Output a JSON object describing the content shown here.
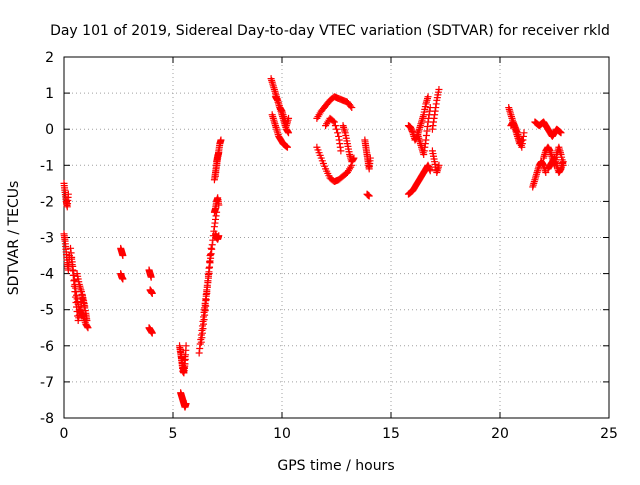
{
  "chart_data": {
    "type": "scatter",
    "title": "Day 101 of 2019, Sidereal Day-to-day VTEC variation (SDTVAR) for receiver rkld",
    "xlabel": "GPS time / hours",
    "ylabel": "SDTVAR / TECUs",
    "xlim": [
      0,
      25
    ],
    "ylim": [
      -8,
      2
    ],
    "xticks": [
      0,
      5,
      10,
      15,
      20,
      25
    ],
    "yticks": [
      -8,
      -7,
      -6,
      -5,
      -4,
      -3,
      -2,
      -1,
      0,
      1,
      2
    ],
    "grid": true,
    "marker": "+",
    "color": "#ff0000",
    "segments": [
      {
        "x": [
          0.0,
          0.05,
          0.1,
          0.15,
          0.2
        ],
        "y": [
          -1.5,
          -1.75,
          -2.0,
          -2.15,
          -1.8
        ]
      },
      {
        "x": [
          0.0,
          0.05,
          0.1,
          0.15,
          0.2,
          0.25
        ],
        "y": [
          -2.9,
          -3.1,
          -3.4,
          -3.7,
          -3.9,
          -3.5
        ]
      },
      {
        "x": [
          0.3,
          0.4,
          0.5,
          0.6,
          0.7,
          0.8,
          0.9,
          1.0,
          1.1
        ],
        "y": [
          -3.3,
          -3.8,
          -4.3,
          -4.7,
          -5.0,
          -5.1,
          -5.2,
          -5.4,
          -5.5
        ]
      },
      {
        "x": [
          0.35,
          0.45,
          0.55,
          0.65,
          0.75,
          0.85,
          0.95
        ],
        "y": [
          -3.6,
          -4.2,
          -4.8,
          -5.3,
          -5.0,
          -4.6,
          -4.9
        ]
      },
      {
        "x": [
          0.6,
          0.7,
          0.8,
          0.9,
          1.0,
          1.05
        ],
        "y": [
          -4.0,
          -4.3,
          -4.5,
          -4.8,
          -5.1,
          -5.3
        ]
      },
      {
        "x": [
          2.6,
          2.65,
          2.7
        ],
        "y": [
          -3.3,
          -3.4,
          -3.5
        ]
      },
      {
        "x": [
          2.6,
          2.65,
          2.7
        ],
        "y": [
          -4.0,
          -4.1,
          -4.15
        ]
      },
      {
        "x": [
          3.9,
          3.95,
          4.0
        ],
        "y": [
          -3.9,
          -4.0,
          -4.1
        ]
      },
      {
        "x": [
          3.95,
          4.0,
          4.05
        ],
        "y": [
          -4.45,
          -4.5,
          -4.55
        ]
      },
      {
        "x": [
          3.9,
          3.95,
          4.0,
          4.05
        ],
        "y": [
          -5.5,
          -5.55,
          -5.6,
          -5.65
        ]
      },
      {
        "x": [
          5.3,
          5.35,
          5.4,
          5.45,
          5.5,
          5.55
        ],
        "y": [
          -6.0,
          -6.2,
          -6.4,
          -6.6,
          -6.7,
          -6.3
        ]
      },
      {
        "x": [
          5.35,
          5.4,
          5.45,
          5.5,
          5.55,
          5.6
        ],
        "y": [
          -6.1,
          -6.4,
          -6.7,
          -6.75,
          -6.5,
          -6.0
        ]
      },
      {
        "x": [
          5.35,
          5.4,
          5.45,
          5.5,
          5.55,
          5.6
        ],
        "y": [
          -7.3,
          -7.4,
          -7.5,
          -7.6,
          -7.7,
          -7.6
        ]
      },
      {
        "x": [
          6.2,
          6.3,
          6.4,
          6.5,
          6.6,
          6.7,
          6.8,
          6.9,
          7.0
        ],
        "y": [
          -6.2,
          -5.7,
          -5.2,
          -4.7,
          -4.2,
          -3.7,
          -3.2,
          -2.7,
          -2.3
        ]
      },
      {
        "x": [
          6.3,
          6.4,
          6.5,
          6.6,
          6.7
        ],
        "y": [
          -5.9,
          -5.4,
          -4.9,
          -4.2,
          -3.5
        ]
      },
      {
        "x": [
          6.45,
          6.55,
          6.65,
          6.75
        ],
        "y": [
          -5.0,
          -4.5,
          -4.0,
          -3.3
        ]
      },
      {
        "x": [
          6.9,
          6.95,
          7.0,
          7.05,
          7.1
        ],
        "y": [
          -2.3,
          -2.2,
          -2.0,
          -1.9,
          -2.1
        ]
      },
      {
        "x": [
          6.95,
          7.0,
          7.05,
          7.1
        ],
        "y": [
          -2.9,
          -3.0,
          -3.05,
          -2.95
        ]
      },
      {
        "x": [
          6.9,
          6.95,
          7.0,
          7.05,
          7.1,
          7.15,
          7.2
        ],
        "y": [
          -1.4,
          -1.2,
          -1.0,
          -0.8,
          -0.6,
          -0.4,
          -0.3
        ]
      },
      {
        "x": [
          6.95,
          7.0,
          7.05,
          7.1
        ],
        "y": [
          -1.3,
          -0.9,
          -0.75,
          -0.65
        ]
      },
      {
        "x": [
          9.5,
          9.6,
          9.7,
          9.8,
          9.9,
          10.0,
          10.1,
          10.2,
          10.3
        ],
        "y": [
          1.4,
          1.2,
          1.0,
          0.8,
          0.6,
          0.4,
          0.2,
          0.0,
          -0.1
        ]
      },
      {
        "x": [
          9.55,
          9.65,
          9.75,
          9.85,
          9.95,
          10.05,
          10.15,
          10.25
        ],
        "y": [
          0.4,
          0.2,
          0.0,
          -0.2,
          -0.3,
          -0.4,
          -0.45,
          -0.5
        ]
      },
      {
        "x": [
          9.7,
          9.8,
          9.9,
          10.0,
          10.1,
          10.2,
          10.3
        ],
        "y": [
          0.9,
          0.8,
          0.6,
          0.5,
          0.3,
          0.1,
          0.3
        ]
      },
      {
        "x": [
          11.6,
          11.8,
          12.0,
          12.2,
          12.4,
          12.6,
          12.8,
          13.0,
          13.2
        ],
        "y": [
          0.3,
          0.5,
          0.65,
          0.8,
          0.9,
          0.85,
          0.8,
          0.75,
          0.6
        ]
      },
      {
        "x": [
          11.6,
          11.8,
          12.0,
          12.2,
          12.4,
          12.6,
          12.8,
          13.0,
          13.2
        ],
        "y": [
          -0.5,
          -0.8,
          -1.1,
          -1.35,
          -1.45,
          -1.4,
          -1.3,
          -1.2,
          -1.0
        ]
      },
      {
        "x": [
          12.0,
          12.2,
          12.4,
          12.6,
          12.7
        ],
        "y": [
          0.1,
          0.3,
          0.2,
          -0.2,
          -0.6
        ]
      },
      {
        "x": [
          12.8,
          12.9,
          13.0,
          13.1,
          13.2,
          13.3
        ],
        "y": [
          0.1,
          -0.1,
          -0.4,
          -0.7,
          -0.9,
          -0.8
        ]
      },
      {
        "x": [
          13.8,
          13.85,
          13.9,
          13.95,
          14.0,
          14.05
        ],
        "y": [
          -0.3,
          -0.5,
          -0.7,
          -0.9,
          -1.1,
          -0.8
        ]
      },
      {
        "x": [
          13.9,
          14.0
        ],
        "y": [
          -1.8,
          -1.85
        ]
      },
      {
        "x": [
          15.8,
          15.9,
          16.0,
          16.1,
          16.2,
          16.3,
          16.4,
          16.5,
          16.6,
          16.7
        ],
        "y": [
          0.1,
          0.05,
          -0.1,
          -0.3,
          -0.2,
          0.0,
          0.2,
          0.4,
          0.7,
          0.9
        ]
      },
      {
        "x": [
          15.8,
          15.9,
          16.0,
          16.1,
          16.2,
          16.3,
          16.4,
          16.5,
          16.6,
          16.7,
          16.8
        ],
        "y": [
          -1.8,
          -1.75,
          -1.7,
          -1.6,
          -1.5,
          -1.4,
          -1.3,
          -1.2,
          -1.1,
          -1.0,
          -1.15
        ]
      },
      {
        "x": [
          16.2,
          16.3,
          16.4,
          16.5,
          16.6,
          16.7,
          16.8
        ],
        "y": [
          -0.1,
          -0.3,
          -0.5,
          -0.7,
          -0.3,
          0.2,
          0.6
        ]
      },
      {
        "x": [
          16.9,
          17.0,
          17.1,
          17.2
        ],
        "y": [
          0.0,
          0.4,
          0.8,
          1.1
        ]
      },
      {
        "x": [
          16.9,
          17.0,
          17.1,
          17.2
        ],
        "y": [
          -0.6,
          -0.9,
          -1.2,
          -1.0
        ]
      },
      {
        "x": [
          20.4,
          20.5,
          20.6,
          20.7,
          20.8,
          20.9,
          21.0
        ],
        "y": [
          0.6,
          0.4,
          0.2,
          0.0,
          -0.2,
          -0.4,
          -0.3
        ]
      },
      {
        "x": [
          20.5,
          20.6,
          20.7,
          20.8,
          20.9,
          21.0,
          21.1
        ],
        "y": [
          0.1,
          0.2,
          0.05,
          -0.1,
          -0.3,
          -0.5,
          -0.1
        ]
      },
      {
        "x": [
          21.5,
          21.6,
          21.7,
          21.8,
          21.9,
          22.0,
          22.1
        ],
        "y": [
          -1.6,
          -1.4,
          -1.2,
          -1.0,
          -0.9,
          -1.0,
          -1.2
        ]
      },
      {
        "x": [
          21.6,
          21.7,
          21.8,
          21.9,
          22.0,
          22.1,
          22.2,
          22.3,
          22.4,
          22.5,
          22.6,
          22.7,
          22.8
        ],
        "y": [
          0.2,
          0.15,
          0.1,
          0.15,
          0.2,
          0.1,
          0.0,
          -0.1,
          -0.2,
          -0.1,
          0.0,
          -0.05,
          -0.1
        ]
      },
      {
        "x": [
          22.0,
          22.1,
          22.2,
          22.3,
          22.4,
          22.5,
          22.6,
          22.7,
          22.8,
          22.9
        ],
        "y": [
          -0.8,
          -0.6,
          -0.5,
          -0.6,
          -0.8,
          -1.0,
          -0.7,
          -0.5,
          -0.7,
          -1.0
        ]
      },
      {
        "x": [
          22.2,
          22.3,
          22.4,
          22.5,
          22.6,
          22.7,
          22.8,
          22.9
        ],
        "y": [
          -1.1,
          -1.0,
          -0.9,
          -0.8,
          -1.0,
          -1.2,
          -1.1,
          -0.9
        ]
      }
    ]
  }
}
